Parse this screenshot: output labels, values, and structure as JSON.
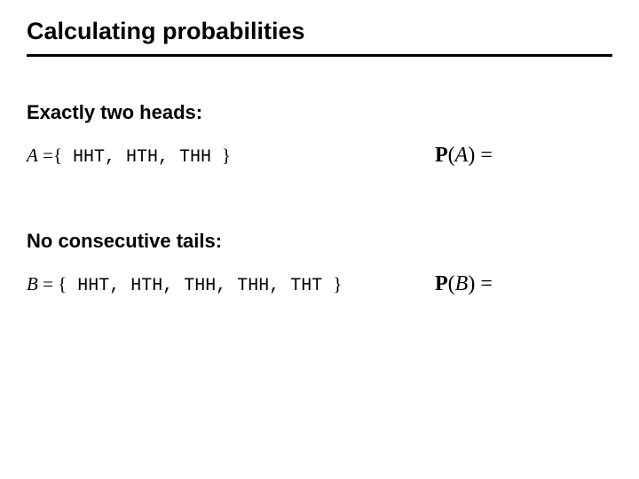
{
  "title": "Calculating probabilities",
  "sectionA": {
    "heading": "Exactly two heads:",
    "var": "A",
    "eq": " ={",
    "elems": "  HHT, HTH, THH ",
    "close": "}",
    "probP": "P",
    "probOpen": "(",
    "probVar": "A",
    "probClose": ") ="
  },
  "sectionB": {
    "heading": "No consecutive tails:",
    "var": "B",
    "eq": " = {",
    "elems": " HHT, HTH, THH, THH, THT ",
    "close": "}",
    "probP": "P",
    "probOpen": "(",
    "probVar": "B",
    "probClose": ") ="
  }
}
